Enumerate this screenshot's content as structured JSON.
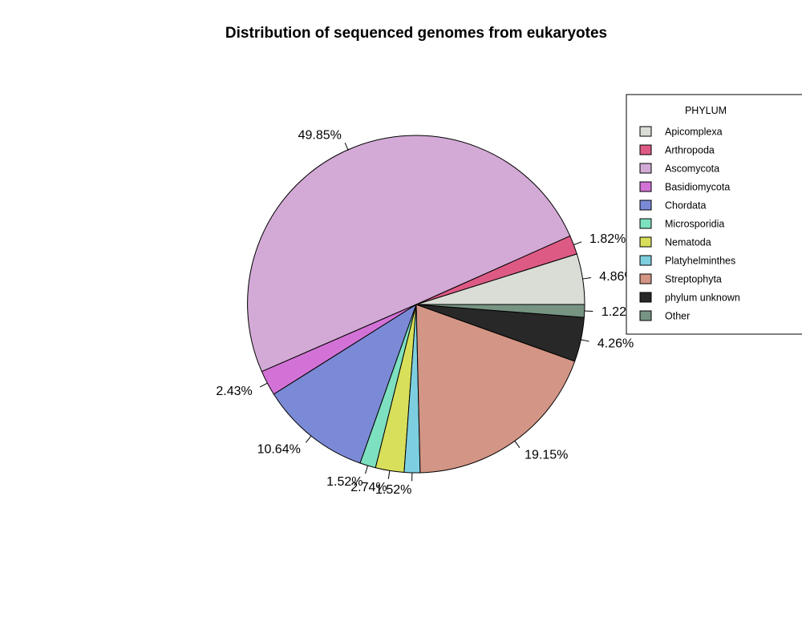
{
  "chart_data": {
    "type": "pie",
    "title": "Distribution of sequenced genomes from eukaryotes",
    "legend_title": "PHYLUM",
    "legend_position": "right",
    "slices": [
      {
        "label": "Apicomplexa",
        "value": 4.86,
        "display": "4.86%",
        "color": "#d9ddd5"
      },
      {
        "label": "Arthropoda",
        "value": 1.82,
        "display": "1.82%",
        "color": "#dd5a85"
      },
      {
        "label": "Ascomycota",
        "value": 49.85,
        "display": "49.85%",
        "color": "#d3aad6"
      },
      {
        "label": "Basidiomycota",
        "value": 2.43,
        "display": "2.43%",
        "color": "#d372d6"
      },
      {
        "label": "Chordata",
        "value": 10.64,
        "display": "10.64%",
        "color": "#7b8ad6"
      },
      {
        "label": "Microsporidia",
        "value": 1.52,
        "display": "1.52%",
        "color": "#7de0c0"
      },
      {
        "label": "Nematoda",
        "value": 2.74,
        "display": "2.74%",
        "color": "#d8df5b"
      },
      {
        "label": "Platyhelminthes",
        "value": 1.52,
        "display": "1.52%",
        "color": "#7dcfe0"
      },
      {
        "label": "Streptophyta",
        "value": 19.15,
        "display": "19.15%",
        "color": "#d39585"
      },
      {
        "label": "phylum unknown",
        "value": 4.26,
        "display": "4.26%",
        "color": "#282828"
      },
      {
        "label": "Other",
        "value": 1.22,
        "display": "1.22%",
        "color": "#779483"
      }
    ],
    "pie_order": [
      "Apicomplexa",
      "Arthropoda",
      "Ascomycota",
      "Basidiomycota",
      "Chordata",
      "Microsporidia",
      "Nematoda",
      "Platyhelminthes",
      "Streptophyta",
      "phylum unknown",
      "Other"
    ],
    "direction": "counterclockwise",
    "start": "3 o'clock"
  }
}
